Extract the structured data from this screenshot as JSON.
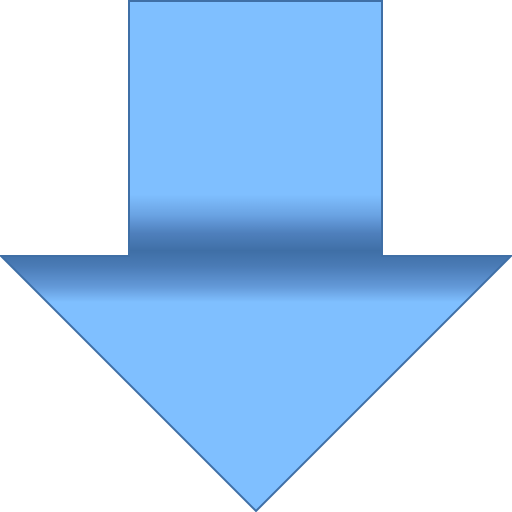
{
  "icon": {
    "name": "down-arrow-icon",
    "colors": {
      "fill_light": "#7fbfff",
      "band_dark": "#3f6fa6",
      "band_mid": "#5f93d6",
      "outline": "#3f6fa6",
      "background": "#ffffff"
    }
  }
}
